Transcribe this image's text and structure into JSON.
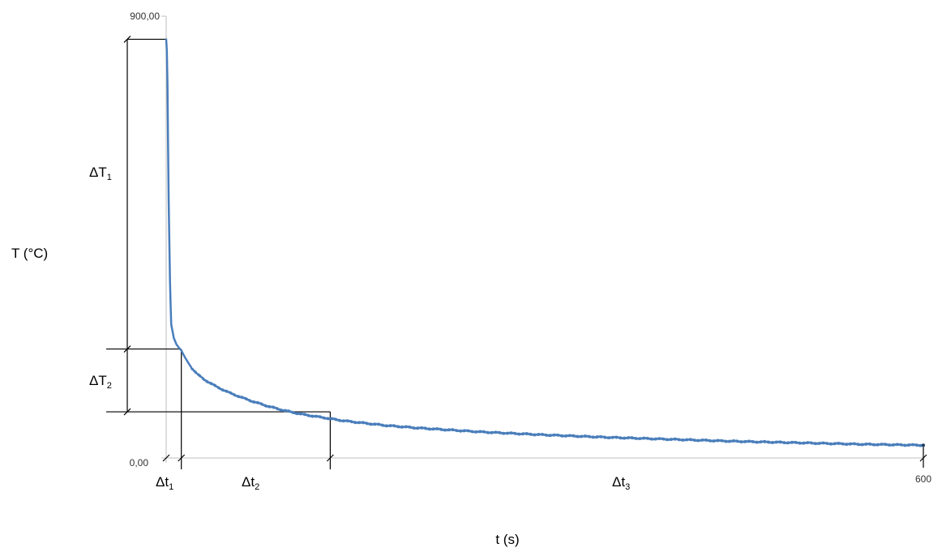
{
  "chart_data": {
    "type": "line",
    "xlabel": "t (s)",
    "ylabel": "T (°C)",
    "xlim": [
      0,
      600
    ],
    "ylim": [
      0,
      900
    ],
    "y_tick_labels": [
      "0,00",
      "900,00"
    ],
    "x_tick_labels": [
      "600"
    ],
    "grid": false,
    "legend": "none",
    "series_color": "#4a7ebb",
    "series": [
      {
        "x": [
          0,
          0.5,
          1,
          1.5,
          2,
          3,
          4,
          6,
          8,
          10,
          12,
          14,
          17,
          20,
          25,
          30,
          40,
          50,
          60,
          70,
          80,
          90,
          100,
          110,
          120,
          130,
          140,
          150,
          175,
          200,
          250,
          300,
          350,
          400,
          450,
          500,
          550,
          600
        ],
        "y": [
          853,
          830,
          760,
          640,
          520,
          360,
          272,
          245,
          232,
          225,
          219,
          209,
          196,
          184,
          170,
          160,
          145,
          133,
          123,
          114,
          106,
          99,
          93,
          88,
          84,
          80,
          76,
          73,
          66,
          61,
          53,
          47,
          42,
          38,
          34,
          31,
          28,
          26
        ]
      }
    ],
    "annotations": {
      "T_marks": [
        853,
        222,
        94
      ],
      "t_marks": [
        12,
        130
      ],
      "labels": {
        "dT1": {
          "main": "ΔT",
          "sub": "1"
        },
        "dT2": {
          "main": "ΔT",
          "sub": "2"
        },
        "dt1": {
          "main": "Δt",
          "sub": "1"
        },
        "dt2": {
          "main": "Δt",
          "sub": "2"
        },
        "dt3": {
          "main": "Δt",
          "sub": "3"
        }
      }
    }
  }
}
